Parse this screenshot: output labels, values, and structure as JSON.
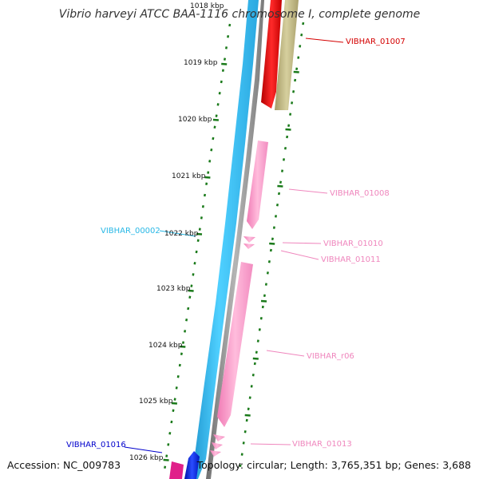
{
  "title": "Vibrio harveyi ATCC BAA-1116 chromosome I, complete genome",
  "footer": {
    "accession": "Accession: NC_009783",
    "topology": "Topology: circular; Length: 3,765,351 bp; Genes: 3,688"
  },
  "kbp_labels": [
    "1018 kbp",
    "1019 kbp",
    "1020 kbp",
    "1021 kbp",
    "1022 kbp",
    "1023 kbp",
    "1024 kbp",
    "1025 kbp",
    "1026 kbp"
  ],
  "genes": [
    {
      "label": "VIBHAR_01007",
      "color": "#d40000"
    },
    {
      "label": "VIBHAR_01008",
      "color": "#ef86bd"
    },
    {
      "label": "VIBHAR_01010",
      "color": "#ef86bd"
    },
    {
      "label": "VIBHAR_01011",
      "color": "#ef86bd"
    },
    {
      "label": "VIBHAR_r06",
      "color": "#ef86bd"
    },
    {
      "label": "VIBHAR_01013",
      "color": "#ef86bd"
    },
    {
      "label": "VIBHAR_00002",
      "color": "#29b8e6"
    },
    {
      "label": "VIBHAR_01016",
      "color": "#0000cc"
    }
  ],
  "colors": {
    "tick": "#1a7a1a",
    "backbone": "#8a8a8a",
    "cyan_feature": "#3ec6f2",
    "red_gene": "#ee0000",
    "olive_gene": "#c8bf8a",
    "pink_gene": "#ffa6cf",
    "blue_gene": "#0a24e0",
    "magenta_gene": "#e0208a"
  }
}
